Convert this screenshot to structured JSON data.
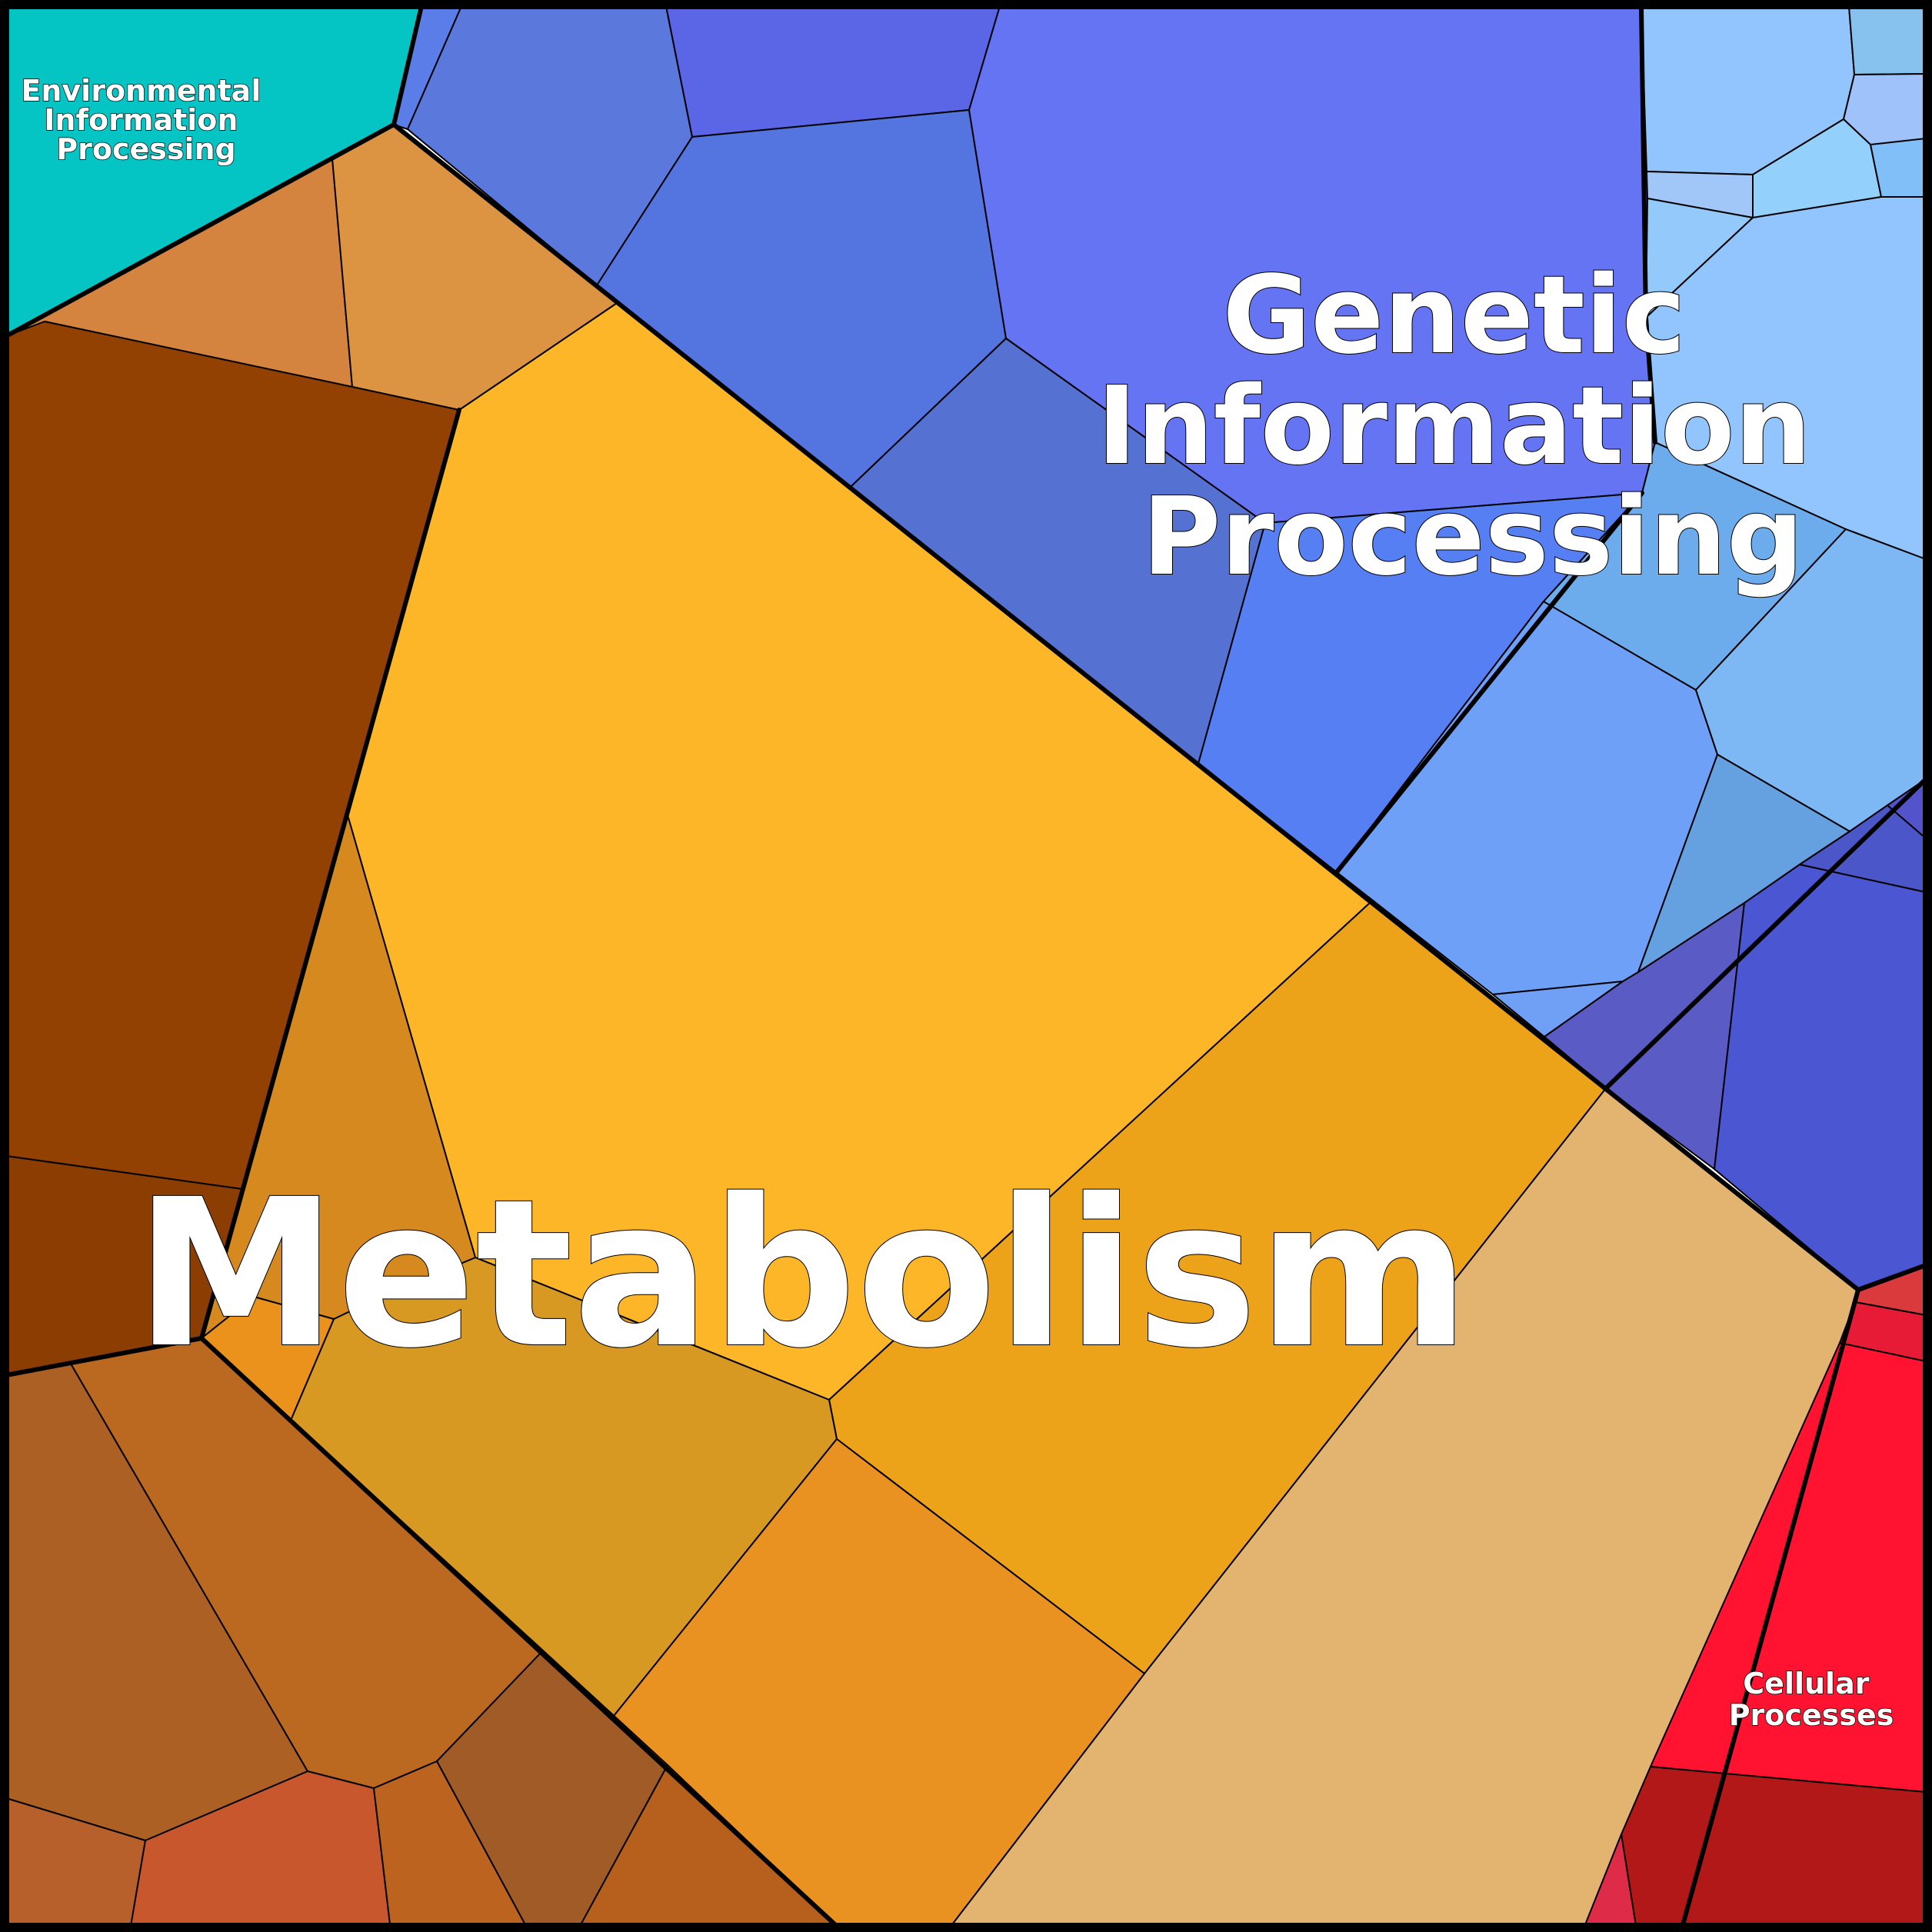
{
  "labels": {
    "metabolism": "Metabolism",
    "genetic": [
      "Genetic",
      "Information",
      "Processing"
    ],
    "environmental": [
      "Environmental",
      "Information",
      "Processing"
    ],
    "cellular": [
      "Cellular",
      "Processes"
    ]
  },
  "colors": {
    "environmental": "#04c4c4",
    "metabolism_main": "#fdb627",
    "genetic_main": "#6474f2",
    "cellular_main": "#ff1330"
  }
}
